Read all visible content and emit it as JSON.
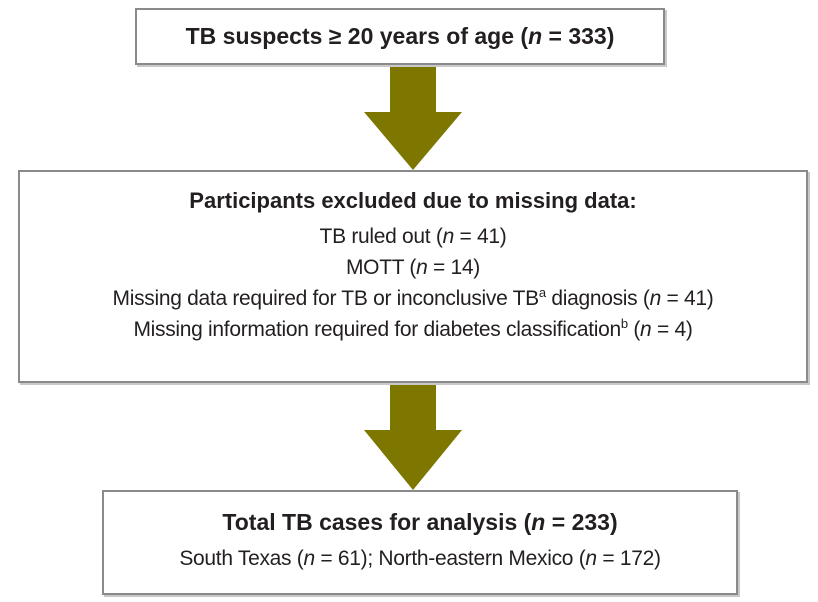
{
  "nodes": [
    {
      "title": [
        "TB suspects ≥ 20 years of age (",
        "n",
        " = 333)"
      ]
    },
    {
      "title": [
        "Participants excluded due to missing data:"
      ],
      "lines": [
        [
          "TB ruled out (",
          "n",
          " = 41)"
        ],
        [
          "MOTT (",
          "n",
          " = 14)"
        ],
        [
          "Missing data required for TB or inconclusive TB",
          "a",
          " diagnosis (",
          "n",
          " = 41)"
        ],
        [
          "Missing information required for diabetes classification",
          "b",
          " (",
          "n",
          " = 4)"
        ]
      ]
    },
    {
      "title": [
        "Total TB cases for analysis (",
        "n",
        " = 233)"
      ],
      "lines": [
        [
          "South Texas (",
          "n",
          " = 61); North-eastern Mexico (",
          "n",
          " = 172)"
        ]
      ]
    }
  ]
}
